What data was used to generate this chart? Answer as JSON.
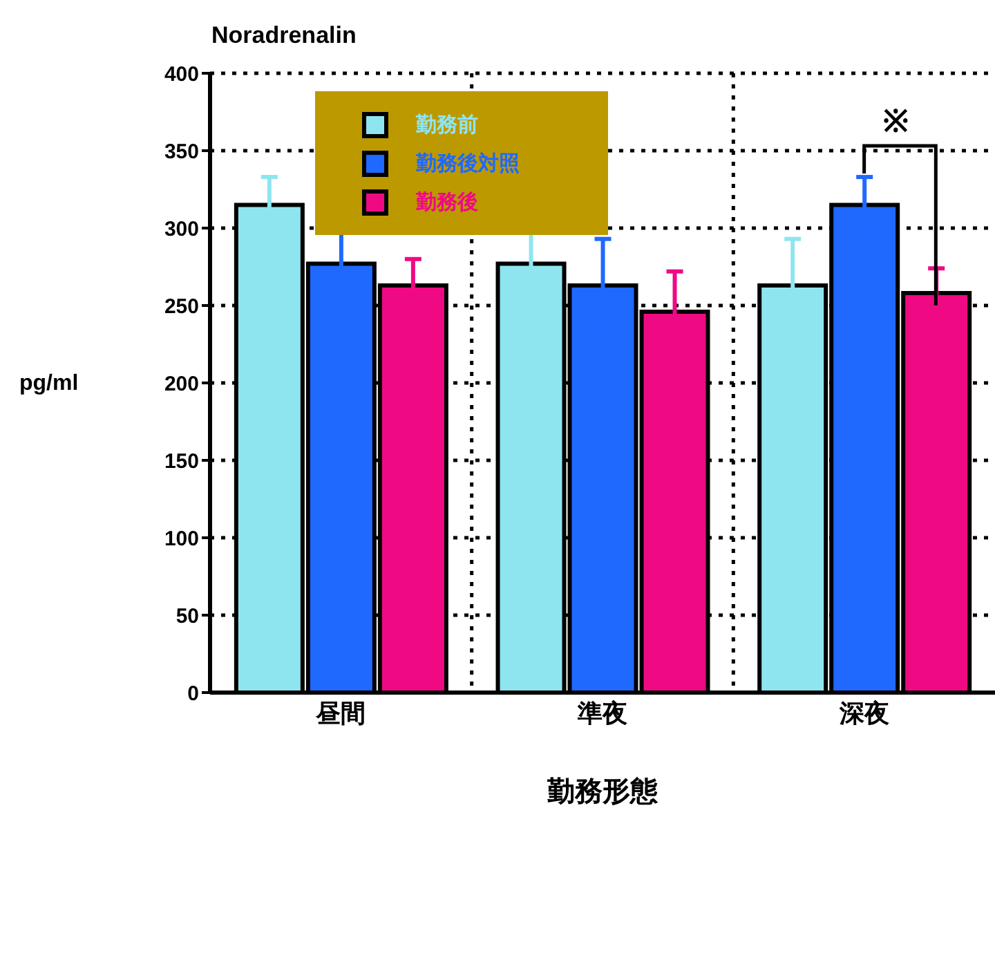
{
  "chart_data": {
    "type": "bar",
    "title": "Noradrenalin",
    "xlabel": "勤務形態",
    "ylabel": "pg/ml",
    "categories": [
      "昼間",
      "準夜",
      "深夜"
    ],
    "series": [
      {
        "name": "勤務前",
        "color": "#8fe5ef",
        "values": [
          315,
          277,
          263
        ],
        "errors": [
          18,
          32,
          30
        ]
      },
      {
        "name": "勤務後対照",
        "color": "#1f69ff",
        "values": [
          277,
          263,
          315
        ],
        "errors": [
          32,
          30,
          18
        ]
      },
      {
        "name": "勤務後",
        "color": "#ef0a84",
        "values": [
          263,
          246,
          258
        ],
        "errors": [
          17,
          26,
          16
        ]
      }
    ],
    "ylim": [
      0,
      400
    ],
    "yticks": [
      0,
      50,
      100,
      150,
      200,
      250,
      300,
      350,
      400
    ],
    "grid": true,
    "legend": "top left",
    "annotations": [
      "※"
    ]
  }
}
